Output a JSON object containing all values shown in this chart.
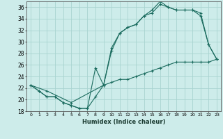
{
  "xlabel": "Humidex (Indice chaleur)",
  "xlim": [
    -0.5,
    23.5
  ],
  "ylim": [
    18,
    37
  ],
  "yticks": [
    18,
    20,
    22,
    24,
    26,
    28,
    30,
    32,
    34,
    36
  ],
  "xticks": [
    0,
    1,
    2,
    3,
    4,
    5,
    6,
    7,
    8,
    9,
    10,
    11,
    12,
    13,
    14,
    15,
    16,
    17,
    18,
    19,
    20,
    21,
    22,
    23
  ],
  "background_color": "#cdecea",
  "grid_color": "#a8d4d0",
  "line_color": "#1a6b5e",
  "line1_x": [
    0,
    1,
    2,
    3,
    4,
    5,
    6,
    7,
    8,
    9,
    10,
    11,
    12,
    13,
    14,
    15,
    16,
    17,
    18,
    19,
    20,
    21,
    22,
    23
  ],
  "line1_y": [
    22.5,
    21.5,
    20.5,
    20.5,
    19.5,
    19.0,
    18.5,
    18.5,
    20.5,
    22.5,
    28.5,
    31.5,
    32.5,
    33.0,
    34.5,
    35.5,
    37.0,
    36.0,
    35.5,
    35.5,
    35.5,
    35.0,
    29.5,
    27.0
  ],
  "line2_x": [
    0,
    1,
    2,
    3,
    4,
    5,
    6,
    7,
    8,
    9,
    10,
    11,
    12,
    13,
    14,
    15,
    16,
    17,
    18,
    19,
    20,
    21,
    22,
    23
  ],
  "line2_y": [
    22.5,
    21.5,
    20.5,
    20.5,
    19.5,
    19.0,
    18.5,
    18.5,
    25.5,
    22.5,
    29.0,
    31.5,
    32.5,
    33.0,
    34.5,
    35.0,
    36.5,
    36.0,
    35.5,
    35.5,
    35.5,
    34.5,
    29.5,
    27.0
  ],
  "line3_x": [
    0,
    2,
    5,
    9,
    10,
    11,
    12,
    13,
    14,
    15,
    16,
    17,
    18,
    19,
    20,
    21,
    22,
    23
  ],
  "line3_y": [
    22.5,
    21.5,
    19.5,
    22.5,
    23.0,
    23.5,
    23.5,
    24.0,
    24.5,
    25.0,
    25.5,
    26.0,
    26.5,
    26.5,
    26.5,
    26.5,
    26.5,
    27.0
  ]
}
